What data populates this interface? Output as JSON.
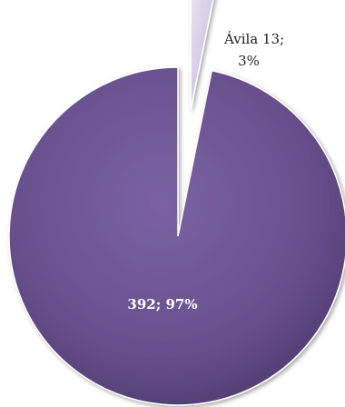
{
  "chart_data": {
    "type": "pie",
    "slices": [
      {
        "label_line1": "Ávila 13;",
        "label_line2": "3%",
        "value": 13,
        "percent": 3,
        "color": "#c9c0e0",
        "exploded": true
      },
      {
        "label": "392; 97%",
        "value": 392,
        "percent": 97,
        "color": "#6a5390",
        "exploded": false
      }
    ],
    "legend": "none"
  }
}
